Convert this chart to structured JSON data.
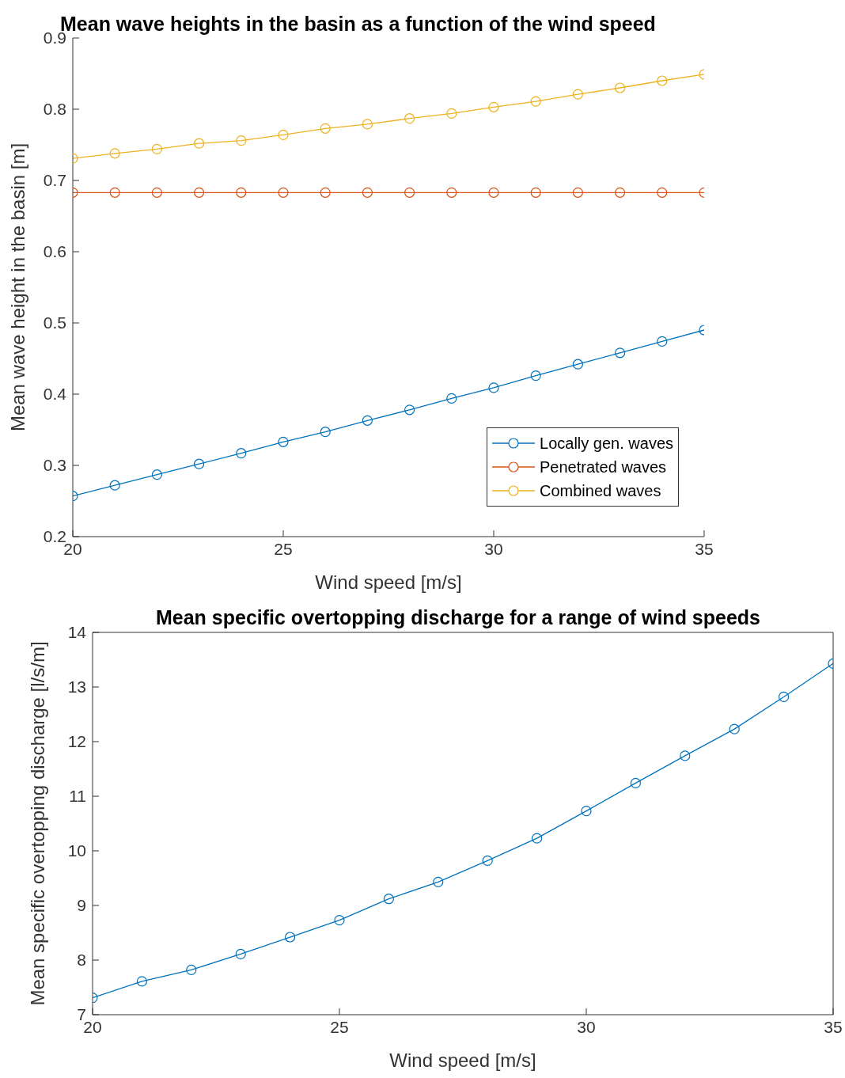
{
  "chart_data": [
    {
      "type": "line",
      "title": "Mean wave heights in the basin as a function of the wind speed",
      "xlabel": "Wind speed [m/s]",
      "ylabel": "Mean wave height in the basin [m]",
      "x": [
        20,
        21,
        22,
        23,
        24,
        25,
        26,
        27,
        28,
        29,
        30,
        31,
        32,
        33,
        34,
        35
      ],
      "series": [
        {
          "name": "Locally gen. waves",
          "color": "#0072bd",
          "values": [
            0.257,
            0.272,
            0.287,
            0.302,
            0.317,
            0.333,
            0.347,
            0.363,
            0.378,
            0.394,
            0.409,
            0.426,
            0.442,
            0.458,
            0.474,
            0.49
          ]
        },
        {
          "name": "Penetrated waves",
          "color": "#d95319",
          "values": [
            0.683,
            0.683,
            0.683,
            0.683,
            0.683,
            0.683,
            0.683,
            0.683,
            0.683,
            0.683,
            0.683,
            0.683,
            0.683,
            0.683,
            0.683,
            0.683
          ]
        },
        {
          "name": "Combined waves",
          "color": "#edb120",
          "values": [
            0.731,
            0.738,
            0.744,
            0.752,
            0.756,
            0.764,
            0.773,
            0.779,
            0.787,
            0.794,
            0.803,
            0.811,
            0.821,
            0.83,
            0.84,
            0.849
          ]
        }
      ],
      "xlim": [
        20,
        35
      ],
      "xticks": [
        20,
        25,
        30,
        35
      ],
      "ylim": [
        0.2,
        0.9
      ],
      "yticks": [
        0.2,
        0.3,
        0.4,
        0.5,
        0.6,
        0.7,
        0.8,
        0.9
      ],
      "grid": false,
      "legend": "bottom right",
      "marker": "circle",
      "line_style": "solid"
    },
    {
      "type": "line",
      "title": "Mean specific overtopping discharge for a range of wind speeds",
      "xlabel": "Wind speed [m/s]",
      "ylabel": "Mean specific overtopping discharge [l/s/m]",
      "x": [
        20,
        21,
        22,
        23,
        24,
        25,
        26,
        27,
        28,
        29,
        30,
        31,
        32,
        33,
        34,
        35
      ],
      "series": [
        {
          "color": "#0072bd",
          "values": [
            7.31,
            7.61,
            7.82,
            8.11,
            8.42,
            8.73,
            9.12,
            9.43,
            9.82,
            10.23,
            10.73,
            11.24,
            11.74,
            12.23,
            12.82,
            13.43
          ]
        }
      ],
      "xlim": [
        20,
        35
      ],
      "xticks": [
        20,
        25,
        30,
        35
      ],
      "ylim": [
        7,
        14
      ],
      "yticks": [
        7,
        8,
        9,
        10,
        11,
        12,
        13,
        14
      ],
      "grid": false,
      "legend": false,
      "marker": "circle",
      "line_style": "solid"
    }
  ]
}
